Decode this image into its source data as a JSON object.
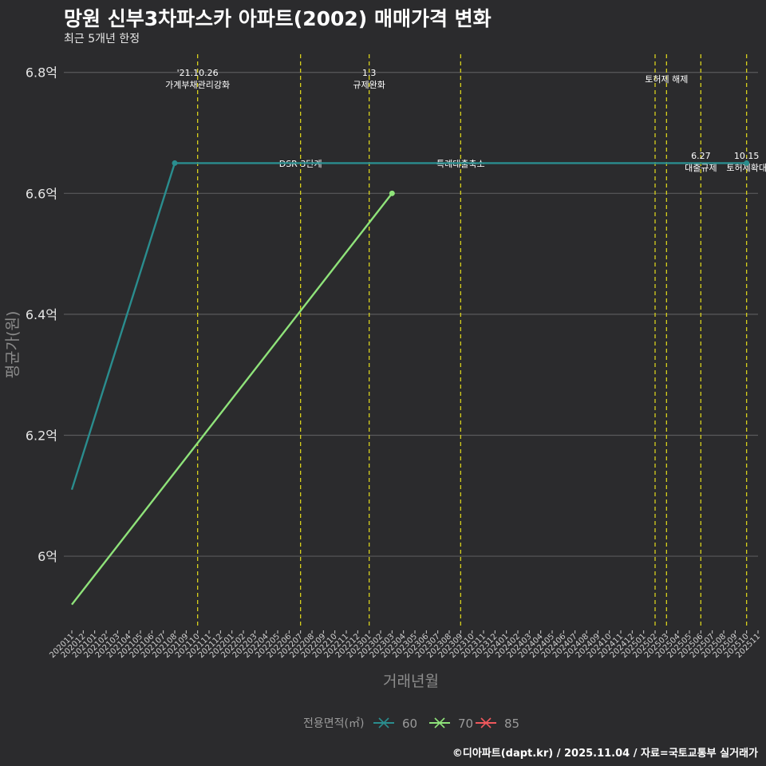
{
  "chart_data": {
    "type": "line",
    "title": "망원 신부3차파스카 아파트(2002) 매매가격 변화",
    "subtitle": "최근 5개년 한정",
    "xlabel": "거래년월",
    "ylabel": "평균가(원)",
    "caption": "©디아파트(dapt.kr) / 2025.11.04 / 자료=국토교통부 실거래가",
    "categories": [
      "202011",
      "202012",
      "202101",
      "202102",
      "202103",
      "202104",
      "202105",
      "202106",
      "202107",
      "202108",
      "202109",
      "202110",
      "202111",
      "202112",
      "202201",
      "202202",
      "202203",
      "202204",
      "202205",
      "202206",
      "202207",
      "202208",
      "202209",
      "202210",
      "202211",
      "202212",
      "202301",
      "202302",
      "202303",
      "202304",
      "202305",
      "202306",
      "202307",
      "202308",
      "202309",
      "202310",
      "202311",
      "202312",
      "202401",
      "202402",
      "202403",
      "202404",
      "202405",
      "202406",
      "202407",
      "202408",
      "202409",
      "202410",
      "202411",
      "202412",
      "202501",
      "202502",
      "202503",
      "202504",
      "202505",
      "202506",
      "202507",
      "202508",
      "202509",
      "202510",
      "202511"
    ],
    "ylim": [
      5.88,
      6.83
    ],
    "yticks": [
      {
        "value": 6.0,
        "label": "6억"
      },
      {
        "value": 6.2,
        "label": "6.2억"
      },
      {
        "value": 6.4,
        "label": "6.4억"
      },
      {
        "value": 6.6,
        "label": "6.6억"
      },
      {
        "value": 6.8,
        "label": "6.8억"
      }
    ],
    "grid": true,
    "series": [
      {
        "name": "60",
        "color": "#2a8d8e",
        "points": [
          {
            "x": "202011",
            "y": 6.11
          },
          {
            "x": "202108",
            "y": 6.65
          },
          {
            "x": "202510",
            "y": 6.65
          }
        ],
        "markers": [
          "202108",
          "202510"
        ]
      },
      {
        "name": "70",
        "color": "#8fe37a",
        "points": [
          {
            "x": "202011",
            "y": 5.92
          },
          {
            "x": "202303",
            "y": 6.6
          }
        ],
        "markers": [
          "202303"
        ]
      },
      {
        "name": "85",
        "color": "#f0585c",
        "points": [],
        "markers": []
      }
    ],
    "events": [
      {
        "x": "202110",
        "lines": [
          "'21.10.26",
          "가계부채관리강화"
        ],
        "pos": "top"
      },
      {
        "x": "202207",
        "lines": [
          "DSR 3단계"
        ],
        "pos": "mid"
      },
      {
        "x": "202301",
        "lines": [
          "1.3",
          "규제완화"
        ],
        "pos": "top"
      },
      {
        "x": "202309",
        "lines": [
          "특례대출축소"
        ],
        "pos": "mid"
      },
      {
        "x": "202502",
        "lines": [],
        "pos": "top"
      },
      {
        "x": "202503",
        "lines": [
          "토허제 해제"
        ],
        "pos": "top2"
      },
      {
        "x": "202506",
        "lines": [
          "6.27",
          "대출규제"
        ],
        "pos": "mid"
      },
      {
        "x": "202510",
        "lines": [
          "10.15",
          "토허제확대"
        ],
        "pos": "mid"
      }
    ],
    "legend": {
      "title": "전용면적(㎡)",
      "placement": "bottom"
    }
  }
}
